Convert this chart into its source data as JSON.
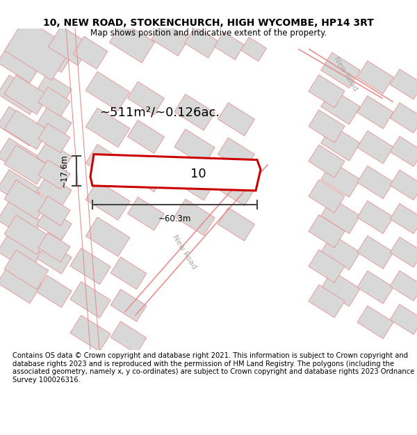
{
  "title": "10, NEW ROAD, STOKENCHURCH, HIGH WYCOMBE, HP14 3RT",
  "subtitle": "Map shows position and indicative extent of the property.",
  "footer": "Contains OS data © Crown copyright and database right 2021. This information is subject to Crown copyright and database rights 2023 and is reproduced with the permission of HM Land Registry. The polygons (including the associated geometry, namely x, y co-ordinates) are subject to Crown copyright and database rights 2023 Ordnance Survey 100026316.",
  "area_label": "~511m²/~0.126ac.",
  "width_label": "~60.3m",
  "height_label": "~17.6m",
  "number_label": "10",
  "background_color": "#ffffff",
  "building_fill": "#d8d8d8",
  "building_edge": "#e89090",
  "road_color": "#e89090",
  "highlight_fill": "#ffffff",
  "highlight_edge": "#cc0000",
  "dim_color": "#444444",
  "road_label_color": "#aaaaaa",
  "title_fontsize": 10,
  "subtitle_fontsize": 8.5,
  "footer_fontsize": 7.2,
  "area_fontsize": 13,
  "dim_fontsize": 8.5,
  "number_fontsize": 13,
  "road_fontsize": 8
}
